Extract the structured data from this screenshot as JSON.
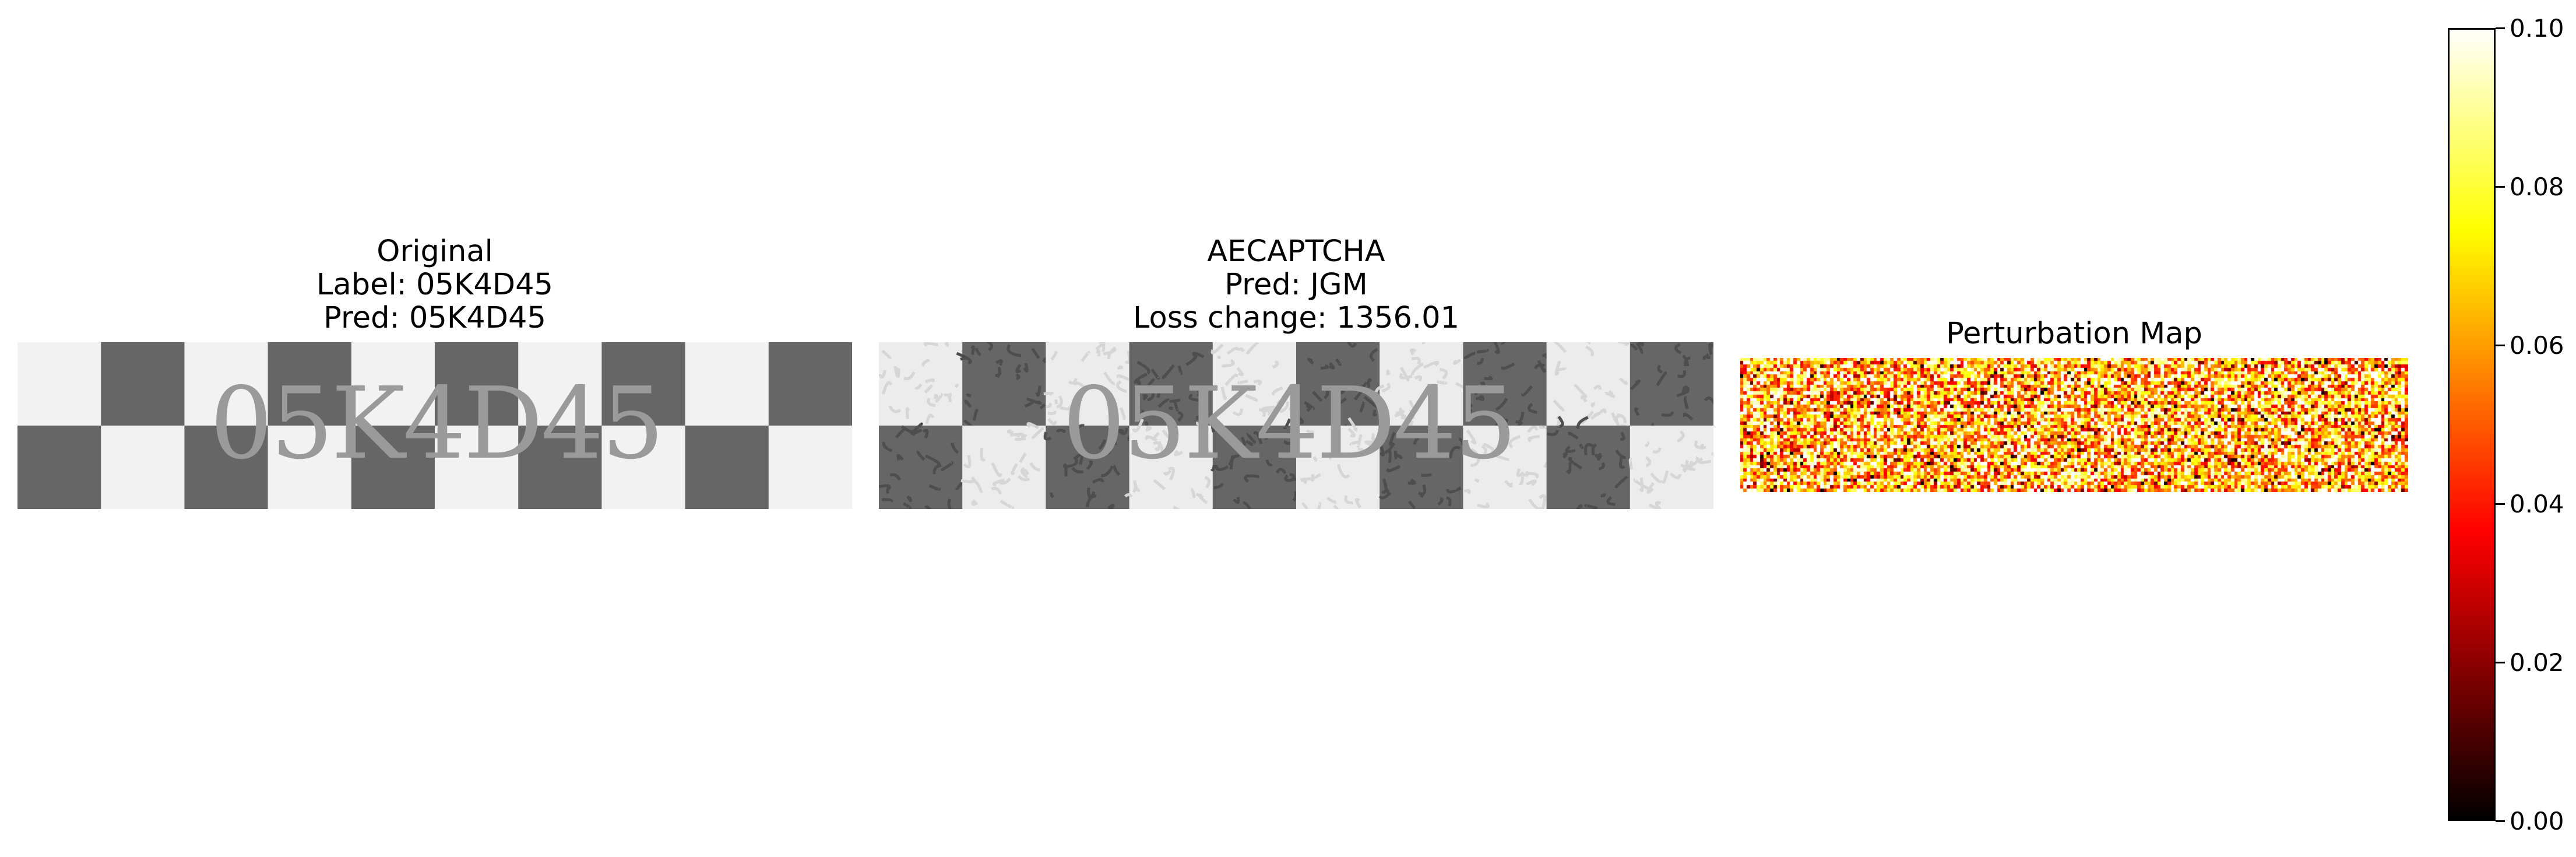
{
  "chart_data": [
    {
      "type": "image",
      "title_lines": [
        "Original",
        "Label: 05K4D45",
        "Pred: 05K4D45"
      ],
      "captcha_text": "05K4D45",
      "colors": {
        "dark": "#666666",
        "light": "#f2f2f2"
      }
    },
    {
      "type": "image",
      "title_lines": [
        "AECAPTCHA",
        "Pred: JGM",
        "Loss change: 1356.01"
      ],
      "captcha_text": "05K4D45",
      "colors": {
        "dark": "#666666",
        "light": "#ececec",
        "noise": "#d6d6d6"
      }
    },
    {
      "type": "heatmap",
      "title": "Perturbation Map",
      "colormap": "hot",
      "vmin": 0.0,
      "vmax": 0.1,
      "colorbar_ticks": [
        "0.00",
        "0.02",
        "0.04",
        "0.06",
        "0.08",
        "0.10"
      ],
      "colorbar_tick_values": [
        0.0,
        0.02,
        0.04,
        0.06,
        0.08,
        0.1
      ]
    }
  ]
}
